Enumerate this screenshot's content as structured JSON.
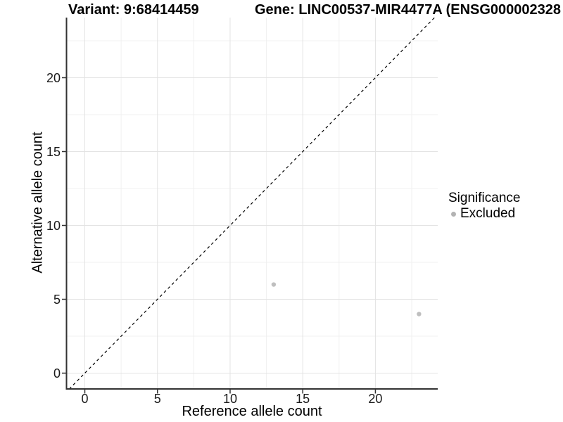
{
  "header": {
    "title_left": "Variant: 9:68414459",
    "title_right": "Gene: LINC00537-MIR4477A (ENSG000002328"
  },
  "chart_data": {
    "type": "scatter",
    "title_left": "Variant: 9:68414459",
    "title_right": "Gene: LINC00537-MIR4477A (ENSG000002328",
    "xlabel": "Reference allele count",
    "ylabel": "Alternative allele count",
    "xlim": [
      -1.26,
      24.29
    ],
    "ylim": [
      -1.07,
      24.07
    ],
    "xticks": [
      0,
      5,
      10,
      15,
      20
    ],
    "yticks": [
      0,
      5,
      10,
      15,
      20
    ],
    "xminor": [
      2.5,
      7.5,
      12.5,
      17.5,
      22.5
    ],
    "yminor": [
      2.5,
      7.5,
      12.5,
      17.5,
      22.5
    ],
    "grid": true,
    "series": [
      {
        "name": "Excluded",
        "color": "#bfbfbf",
        "points": [
          {
            "x": 13,
            "y": 6
          },
          {
            "x": 23,
            "y": 4
          }
        ]
      }
    ],
    "reference_line": {
      "kind": "identity",
      "style": "dashed",
      "color": "#000000"
    },
    "legend": {
      "title": "Significance",
      "position": "right",
      "items": [
        {
          "label": "Excluded",
          "color": "#b3b3b3"
        }
      ]
    }
  },
  "style": {
    "grid_major_color": "#e3e3e3",
    "grid_minor_color": "#f0f0f0",
    "axis_line_color": "#333333",
    "tick_label_color": "#1a1a1a",
    "point_color": "#bfbfbf"
  }
}
